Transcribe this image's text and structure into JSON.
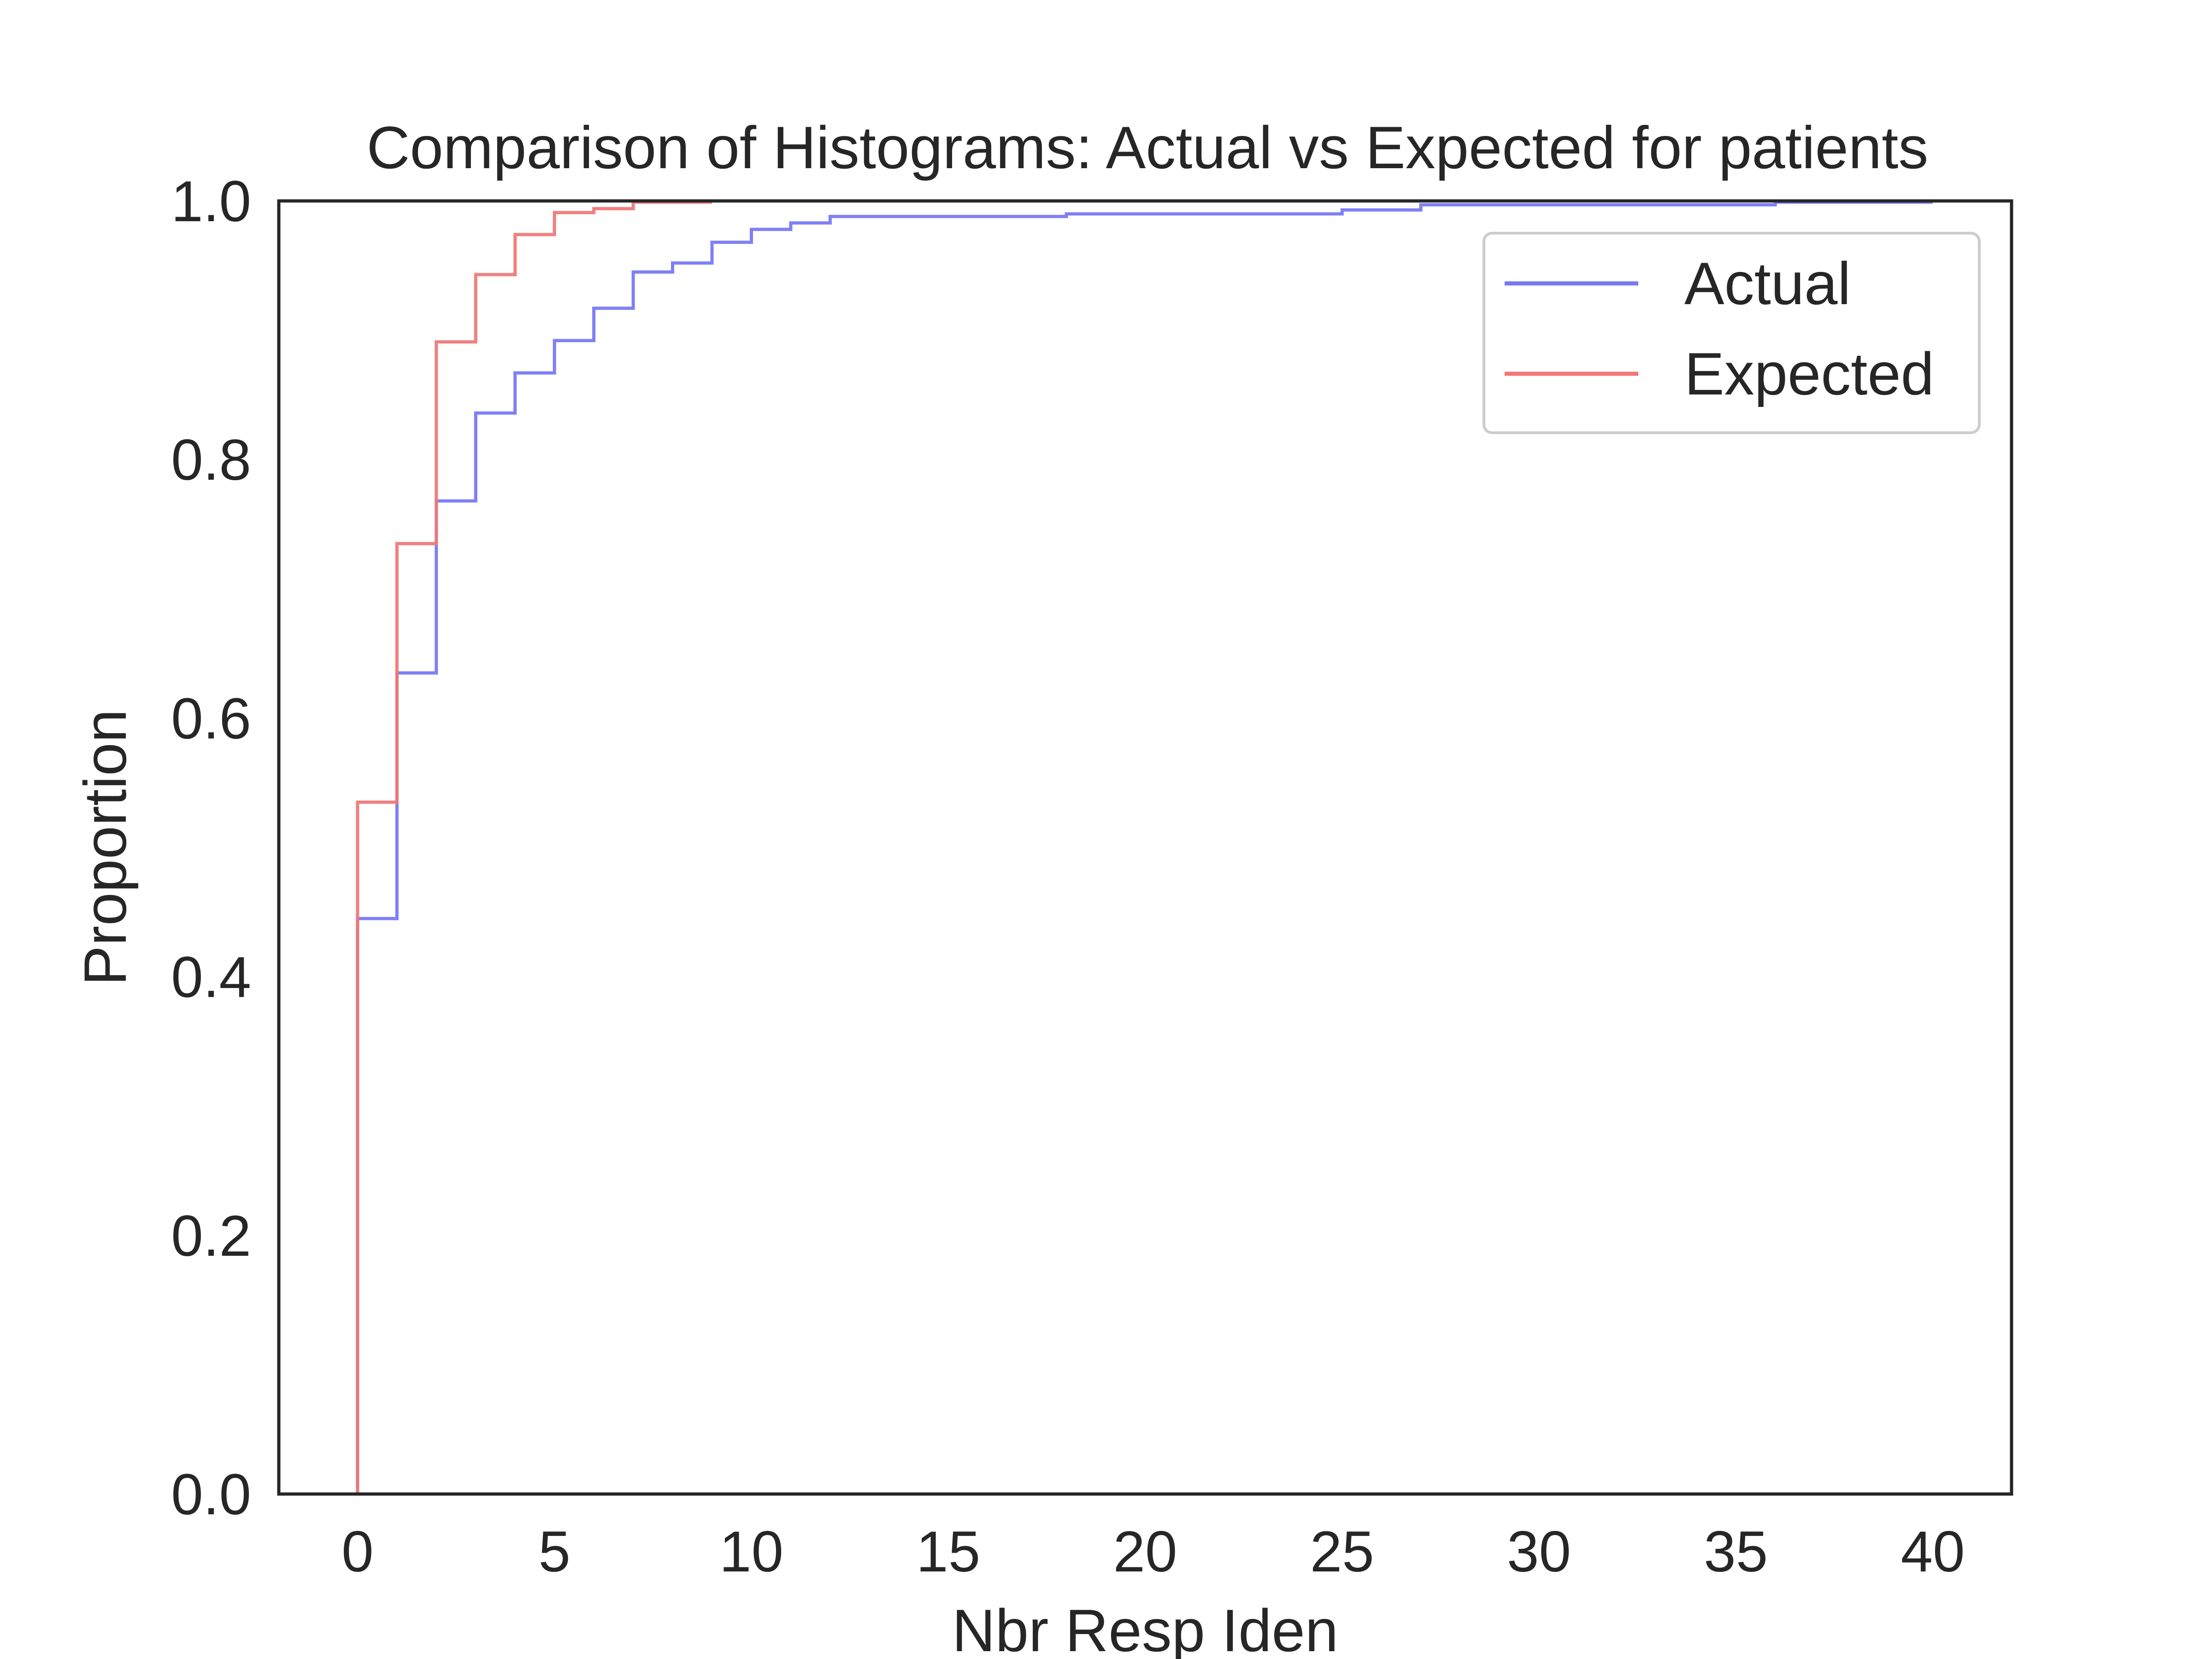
{
  "chart_data": {
    "type": "line",
    "drawstyle": "cumulative-step",
    "title": "Comparison of Histograms: Actual vs Expected for patients",
    "xlabel": "Nbr Resp Iden",
    "ylabel": "Proportion",
    "xlim": [
      -2,
      42
    ],
    "ylim": [
      0,
      1.0
    ],
    "xticks": [
      0,
      5,
      10,
      15,
      20,
      25,
      30,
      35,
      40
    ],
    "xtick_labels": [
      "0",
      "5",
      "10",
      "15",
      "20",
      "25",
      "30",
      "35",
      "40"
    ],
    "yticks": [
      0.0,
      0.2,
      0.4,
      0.6,
      0.8,
      1.0
    ],
    "ytick_labels": [
      "0.0",
      "0.2",
      "0.4",
      "0.6",
      "0.8",
      "1.0"
    ],
    "grid": false,
    "legend_position": "top-right",
    "series": [
      {
        "name": "Actual",
        "color": "#7878f5",
        "bin_edges": [
          0,
          1,
          2,
          3,
          4,
          5,
          6,
          7,
          8,
          9,
          10,
          11,
          12,
          18,
          25,
          27,
          36,
          40
        ],
        "cumulative": [
          0.445,
          0.635,
          0.768,
          0.836,
          0.867,
          0.892,
          0.917,
          0.945,
          0.952,
          0.968,
          0.978,
          0.983,
          0.988,
          0.99,
          0.993,
          0.997,
          0.999
        ]
      },
      {
        "name": "Expected",
        "color": "#f07878",
        "bin_edges": [
          0,
          1,
          2,
          3,
          4,
          5,
          6,
          7,
          9
        ],
        "cumulative": [
          0.535,
          0.735,
          0.891,
          0.943,
          0.974,
          0.991,
          0.994,
          0.999
        ]
      }
    ]
  }
}
